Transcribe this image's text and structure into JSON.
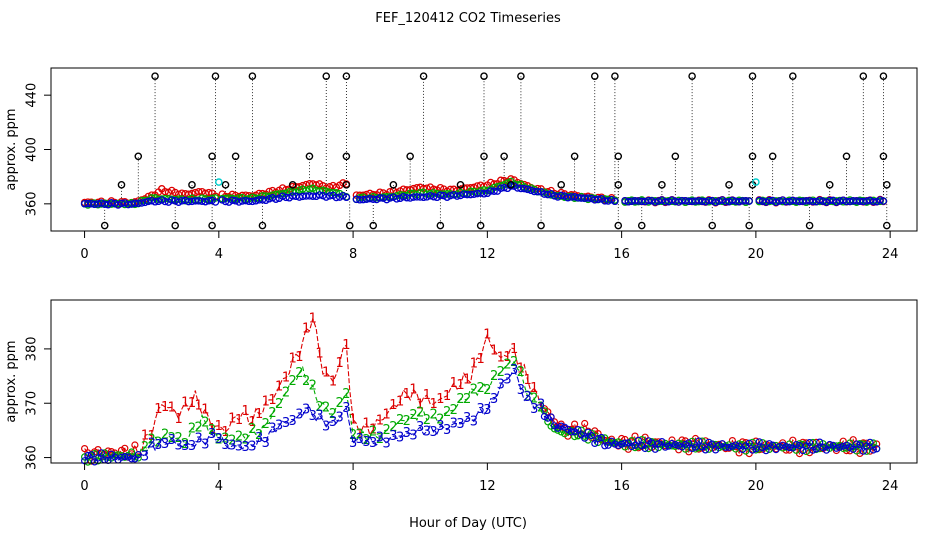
{
  "title": "FEF_120412  CO2 Timeseries",
  "xlabel": "Hour of Day (UTC)",
  "chart_data": [
    {
      "type": "scatter",
      "panel": "top",
      "ylabel": "approx. ppm",
      "xlim": [
        -1,
        24.8
      ],
      "ylim": [
        340,
        460
      ],
      "xticks": [
        0,
        4,
        8,
        12,
        16,
        20,
        24
      ],
      "yticks": [
        360,
        400,
        440
      ],
      "colors": {
        "inlet1": "#dd0000",
        "inlet2": "#00aa00",
        "inlet3": "#0000cc",
        "spike": "#000000",
        "cal": "#00cccc"
      },
      "spikes_high": [
        2.1,
        3.9,
        5.0,
        7.2,
        7.8,
        10.1,
        11.9,
        13.0,
        15.2,
        15.8,
        18.1,
        19.9,
        21.1,
        23.2,
        23.8
      ],
      "spikes_low": [
        0.6,
        2.7,
        3.8,
        5.3,
        7.9,
        8.6,
        10.6,
        11.8,
        13.6,
        15.9,
        16.6,
        18.7,
        19.8,
        21.6,
        23.9
      ],
      "spikes_mid": [
        1.6,
        3.8,
        4.5,
        6.7,
        7.8,
        9.7,
        11.9,
        12.5,
        14.6,
        15.9,
        17.6,
        19.9,
        20.5,
        22.7,
        23.8
      ],
      "spikes_small": [
        1.1,
        3.2,
        4.2,
        6.2,
        7.8,
        9.2,
        11.2,
        12.7,
        14.2,
        15.9,
        17.2,
        19.2,
        19.9,
        22.2,
        23.9
      ],
      "spike_high_value": 454,
      "spike_mid_value": 395,
      "spike_small_value": 374,
      "spike_low_value": 344,
      "cal_points": [
        [
          4.0,
          376
        ],
        [
          20.0,
          376
        ]
      ],
      "series": [
        {
          "name": "1",
          "profile": [
            [
              0,
              361
            ],
            [
              1.5,
              361
            ],
            [
              2.0,
              366
            ],
            [
              2.3,
              370
            ],
            [
              3.0,
              367
            ],
            [
              3.5,
              369
            ],
            [
              4.0,
              366
            ],
            [
              5.0,
              366
            ],
            [
              6.0,
              371
            ],
            [
              6.8,
              375
            ],
            [
              7.3,
              372
            ],
            [
              7.8,
              375
            ],
            [
              8.0,
              366
            ],
            [
              9.0,
              368
            ],
            [
              10.0,
              372
            ],
            [
              11.0,
              370
            ],
            [
              12.0,
              374
            ],
            [
              12.7,
              378
            ],
            [
              13.3,
              372
            ],
            [
              14.0,
              368
            ],
            [
              15.0,
              365
            ],
            [
              15.8,
              363
            ],
            [
              16.0,
              362
            ],
            [
              19.8,
              362
            ],
            [
              20.0,
              362
            ],
            [
              23.8,
              362
            ]
          ]
        },
        {
          "name": "2",
          "profile": [
            [
              0,
              360
            ],
            [
              1.5,
              360
            ],
            [
              2.0,
              364
            ],
            [
              3.0,
              363
            ],
            [
              4.0,
              364
            ],
            [
              5.0,
              364
            ],
            [
              6.0,
              368
            ],
            [
              6.7,
              371
            ],
            [
              7.5,
              368
            ],
            [
              8.0,
              364
            ],
            [
              9.0,
              365
            ],
            [
              10.0,
              368
            ],
            [
              11.0,
              367
            ],
            [
              12.0,
              370
            ],
            [
              12.7,
              376
            ],
            [
              13.3,
              371
            ],
            [
              14.0,
              366
            ],
            [
              15.0,
              364
            ],
            [
              15.8,
              363
            ],
            [
              16.0,
              362
            ],
            [
              19.8,
              362
            ],
            [
              20.0,
              362
            ],
            [
              23.8,
              362
            ]
          ]
        },
        {
          "name": "3",
          "profile": [
            [
              0,
              360
            ],
            [
              1.5,
              360
            ],
            [
              2.0,
              362
            ],
            [
              3.0,
              362
            ],
            [
              4.0,
              362
            ],
            [
              5.0,
              362
            ],
            [
              6.0,
              365
            ],
            [
              7.0,
              366
            ],
            [
              7.8,
              365
            ],
            [
              8.0,
              363
            ],
            [
              9.0,
              364
            ],
            [
              10.0,
              365
            ],
            [
              11.0,
              366
            ],
            [
              12.0,
              368
            ],
            [
              12.7,
              373
            ],
            [
              13.3,
              370
            ],
            [
              14.0,
              366
            ],
            [
              15.0,
              364
            ],
            [
              15.8,
              362
            ],
            [
              16.0,
              362
            ],
            [
              19.8,
              362
            ],
            [
              20.0,
              362
            ],
            [
              23.8,
              362
            ]
          ]
        }
      ]
    },
    {
      "type": "line",
      "panel": "bottom",
      "ylabel": "approx. ppm",
      "xlim": [
        -1,
        24.8
      ],
      "ylim": [
        359,
        389
      ],
      "xticks": [
        0,
        4,
        8,
        12,
        16,
        20,
        24
      ],
      "yticks": [
        360,
        370,
        380
      ],
      "colors": {
        "1": "#dd0000",
        "2": "#00aa00",
        "3": "#0000cc"
      },
      "series": [
        {
          "name": "1",
          "label": "1",
          "profile": [
            [
              0,
              360.5
            ],
            [
              1.0,
              361
            ],
            [
              1.6,
              361
            ],
            [
              2.0,
              365
            ],
            [
              2.3,
              370
            ],
            [
              2.8,
              368
            ],
            [
              3.3,
              371
            ],
            [
              3.8,
              366
            ],
            [
              4.2,
              365
            ],
            [
              4.6,
              368
            ],
            [
              5.0,
              367
            ],
            [
              5.6,
              371
            ],
            [
              6.0,
              375
            ],
            [
              6.5,
              381
            ],
            [
              6.8,
              386
            ],
            [
              7.1,
              376
            ],
            [
              7.4,
              374
            ],
            [
              7.8,
              381
            ],
            [
              8.0,
              366
            ],
            [
              8.5,
              365
            ],
            [
              9.0,
              368
            ],
            [
              9.6,
              372
            ],
            [
              10.0,
              371
            ],
            [
              10.5,
              370
            ],
            [
              11.0,
              373
            ],
            [
              11.5,
              375
            ],
            [
              12.0,
              382
            ],
            [
              12.4,
              378
            ],
            [
              12.7,
              380
            ],
            [
              13.0,
              377
            ],
            [
              13.4,
              372
            ],
            [
              13.8,
              368
            ],
            [
              14.3,
              365
            ],
            [
              15.0,
              365
            ],
            [
              15.6,
              363
            ],
            [
              16.0,
              362.8
            ],
            [
              19.8,
              362
            ],
            [
              20.0,
              362
            ],
            [
              23.6,
              362
            ]
          ]
        },
        {
          "name": "2",
          "label": "2",
          "profile": [
            [
              0,
              360
            ],
            [
              1.6,
              360.5
            ],
            [
              2.0,
              363
            ],
            [
              2.5,
              364
            ],
            [
              3.0,
              363
            ],
            [
              3.5,
              367
            ],
            [
              3.9,
              364
            ],
            [
              4.3,
              363
            ],
            [
              4.8,
              364
            ],
            [
              5.3,
              365
            ],
            [
              5.8,
              370
            ],
            [
              6.2,
              374
            ],
            [
              6.5,
              376
            ],
            [
              7.0,
              370
            ],
            [
              7.4,
              368
            ],
            [
              7.8,
              372
            ],
            [
              8.0,
              364
            ],
            [
              8.8,
              364
            ],
            [
              9.5,
              367
            ],
            [
              10.0,
              368
            ],
            [
              10.5,
              367
            ],
            [
              11.0,
              369
            ],
            [
              11.5,
              372
            ],
            [
              12.0,
              373
            ],
            [
              12.4,
              376
            ],
            [
              12.8,
              378
            ],
            [
              13.2,
              372
            ],
            [
              13.6,
              369
            ],
            [
              14.0,
              365
            ],
            [
              15.0,
              364
            ],
            [
              15.6,
              363
            ],
            [
              16.0,
              362.5
            ],
            [
              19.8,
              362
            ],
            [
              20.0,
              362
            ],
            [
              23.6,
              362
            ]
          ]
        },
        {
          "name": "3",
          "label": "3",
          "profile": [
            [
              0,
              360
            ],
            [
              1.6,
              360
            ],
            [
              2.0,
              362
            ],
            [
              2.5,
              363
            ],
            [
              3.0,
              362
            ],
            [
              3.5,
              363
            ],
            [
              3.9,
              364
            ],
            [
              4.3,
              362
            ],
            [
              4.8,
              362
            ],
            [
              5.3,
              363
            ],
            [
              5.8,
              366
            ],
            [
              6.3,
              367
            ],
            [
              6.6,
              369
            ],
            [
              7.0,
              367
            ],
            [
              7.4,
              366
            ],
            [
              7.8,
              369
            ],
            [
              8.0,
              363
            ],
            [
              8.8,
              363
            ],
            [
              9.5,
              364
            ],
            [
              10.0,
              365
            ],
            [
              10.5,
              365
            ],
            [
              11.0,
              366
            ],
            [
              11.5,
              367
            ],
            [
              12.0,
              369
            ],
            [
              12.5,
              374
            ],
            [
              12.8,
              376
            ],
            [
              13.1,
              371
            ],
            [
              13.6,
              369
            ],
            [
              14.0,
              366
            ],
            [
              15.0,
              364
            ],
            [
              15.6,
              362.5
            ],
            [
              16.0,
              362.5
            ],
            [
              19.8,
              362
            ],
            [
              20.0,
              362
            ],
            [
              23.6,
              362
            ]
          ]
        }
      ]
    }
  ]
}
